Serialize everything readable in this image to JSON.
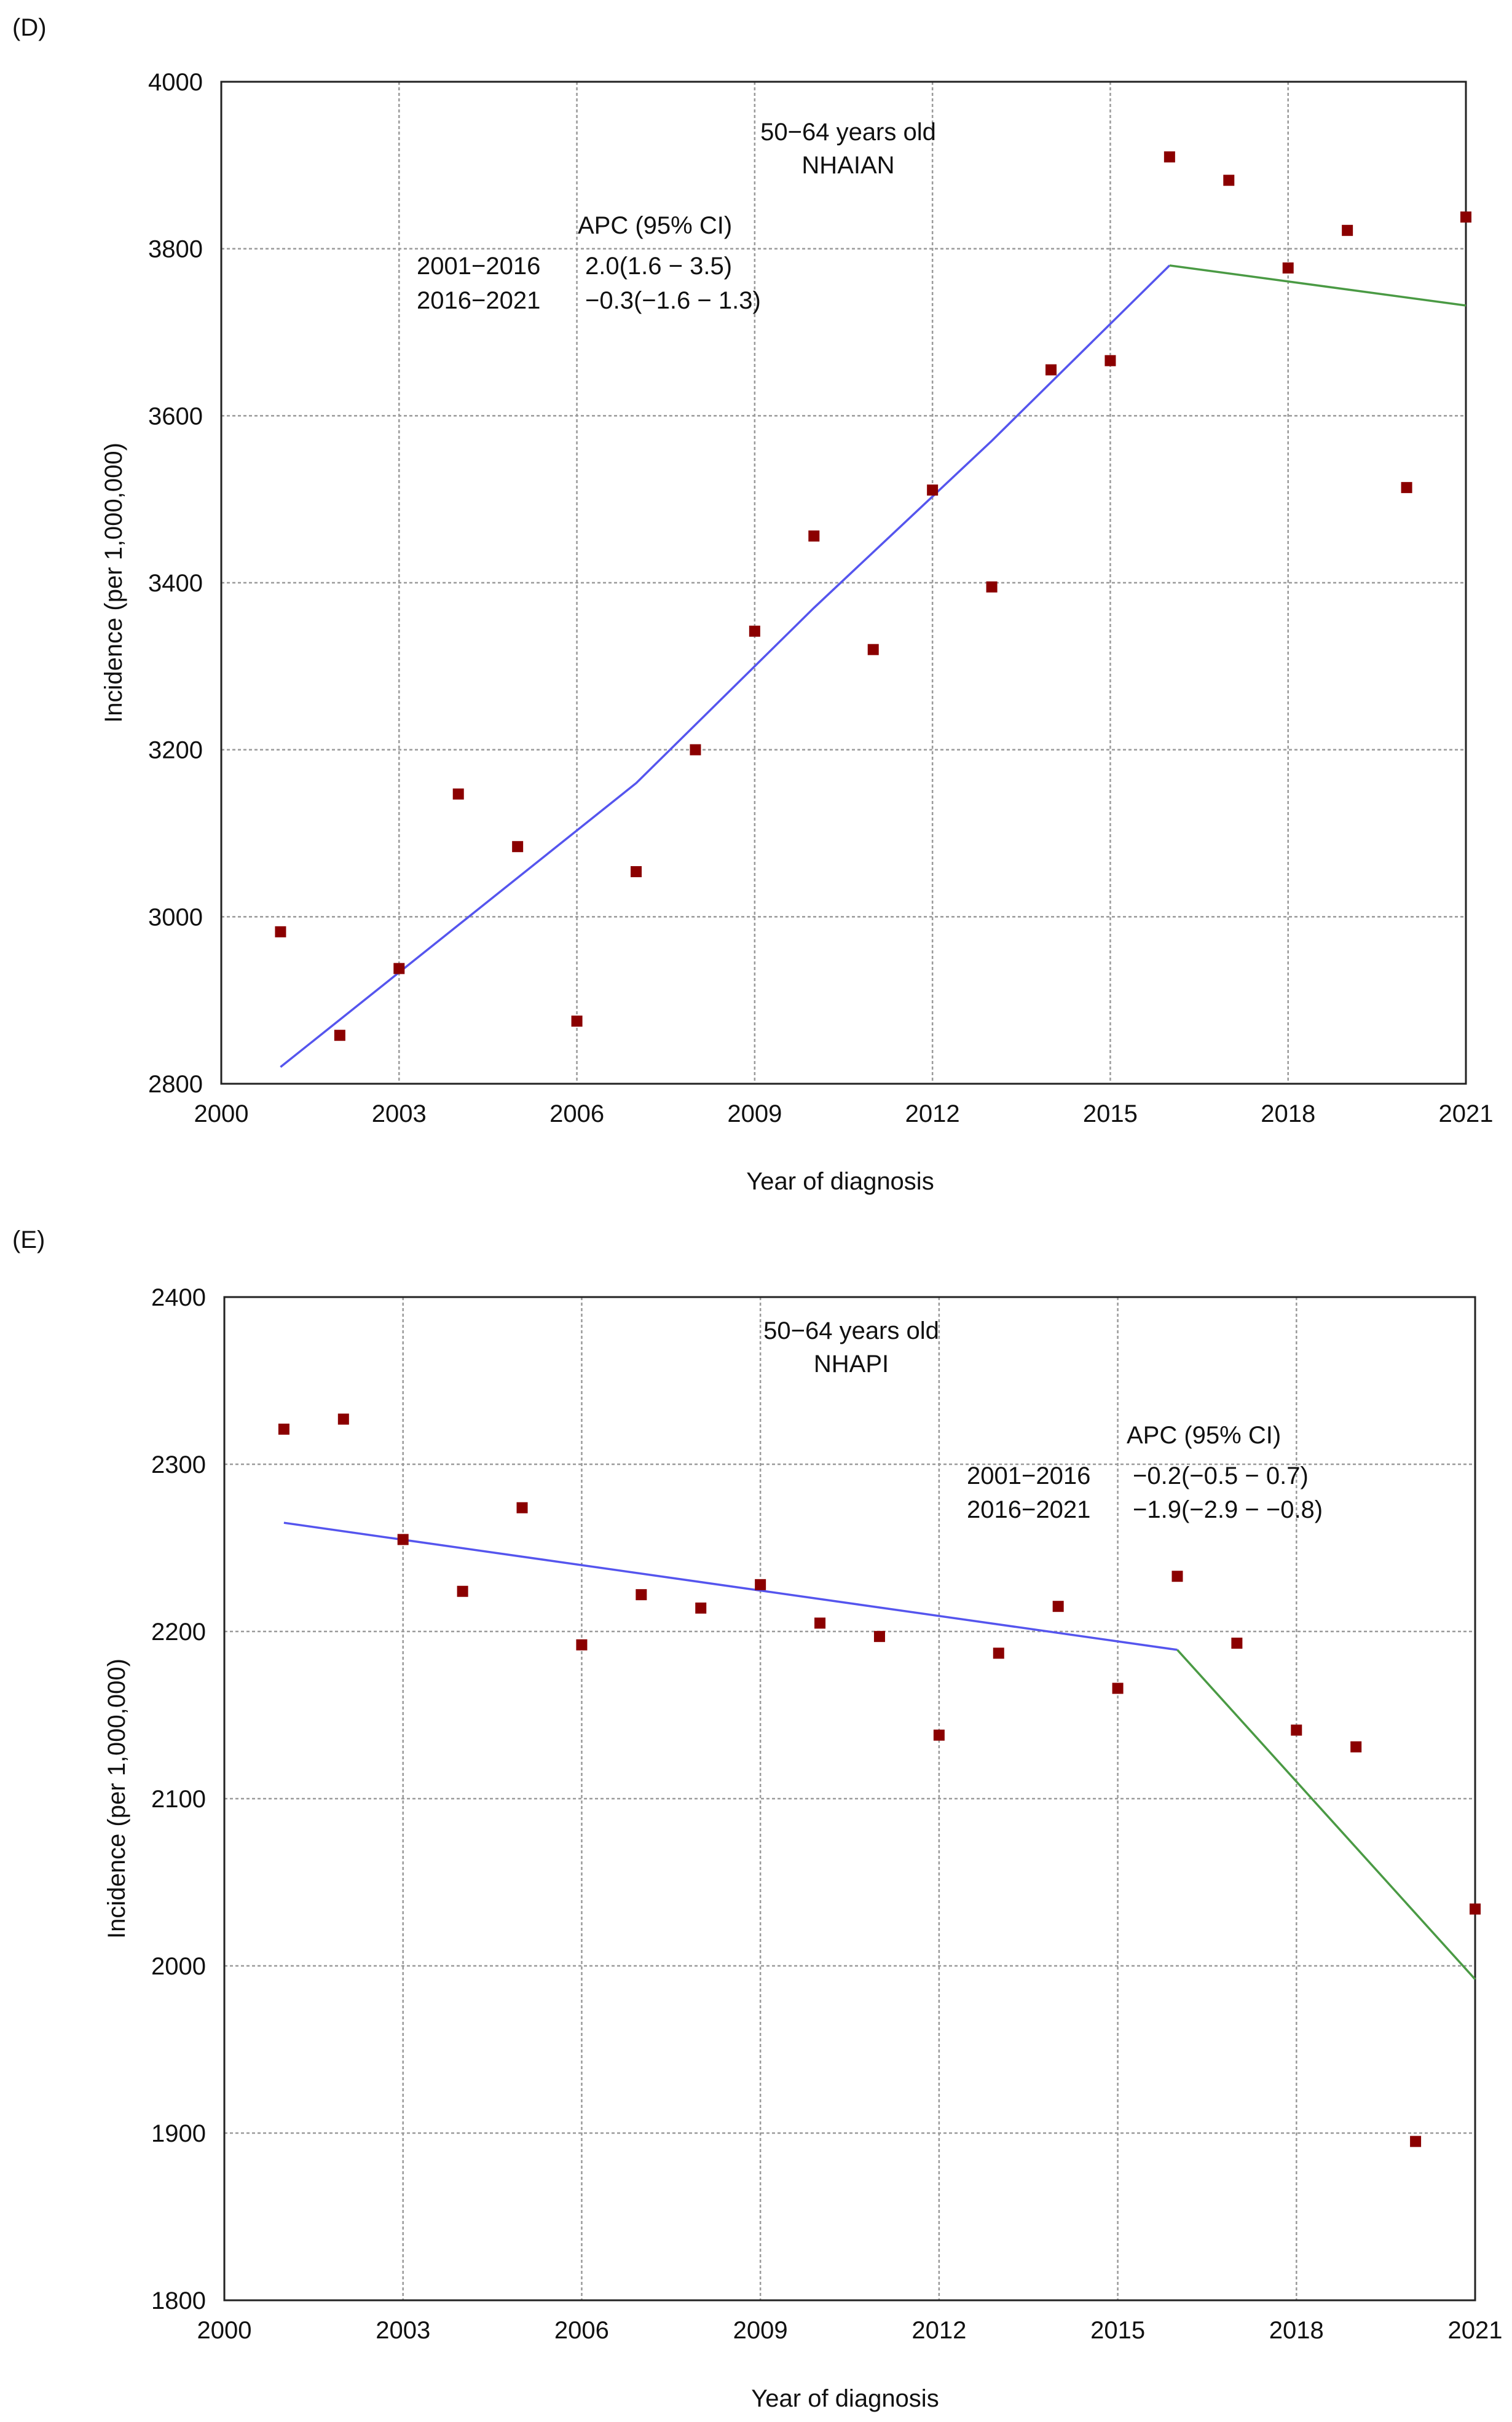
{
  "chart_data": [
    {
      "type": "scatter",
      "panel_label": "(D)",
      "xlabel": "Year of diagnosis",
      "ylabel": "Incidence (per 1,000,000)",
      "xlim": [
        2000,
        2021
      ],
      "ylim": [
        2800,
        4000
      ],
      "xticks": [
        2000,
        2003,
        2006,
        2009,
        2012,
        2015,
        2018,
        2021
      ],
      "yticks": [
        2800,
        3000,
        3200,
        3400,
        3600,
        3800,
        4000
      ],
      "grid": true,
      "annotation_title": [
        "50−64 years old",
        "NHAIAN"
      ],
      "apc_header": "APC (95% CI)",
      "apc_rows": [
        {
          "period": "2001−2016",
          "value": "2.0(1.6 − 3.5)"
        },
        {
          "period": "2016−2021",
          "value": "−0.3(−1.6 − 1.3)"
        }
      ],
      "x": [
        2001,
        2002,
        2003,
        2004,
        2005,
        2006,
        2007,
        2008,
        2009,
        2010,
        2011,
        2012,
        2013,
        2014,
        2015,
        2016,
        2017,
        2018,
        2019,
        2020,
        2021
      ],
      "y": [
        2982,
        2858,
        2938,
        3147,
        3084,
        2875,
        3054,
        3200,
        3342,
        3456,
        3320,
        3511,
        3395,
        3655,
        3666,
        3910,
        3882,
        3777,
        3822,
        3514,
        3838
      ],
      "point_color": "#8b0000",
      "fit_segments": [
        {
          "x": [
            2001,
            2004,
            2007,
            2010,
            2013,
            2016
          ],
          "y": [
            2820,
            2990,
            3160,
            3370,
            3570,
            3780
          ],
          "color": "#5555ee"
        },
        {
          "x": [
            2016,
            2021
          ],
          "y": [
            3780,
            3732
          ],
          "color": "#4a9a44"
        }
      ]
    },
    {
      "type": "scatter",
      "panel_label": "(E)",
      "xlabel": "Year of diagnosis",
      "ylabel": "Incidence (per 1,000,000)",
      "xlim": [
        2000,
        2021
      ],
      "ylim": [
        1800,
        2400
      ],
      "xticks": [
        2000,
        2003,
        2006,
        2009,
        2012,
        2015,
        2018,
        2021
      ],
      "yticks": [
        1800,
        1900,
        2000,
        2100,
        2200,
        2300,
        2400
      ],
      "grid": true,
      "annotation_title": [
        "50−64 years old",
        "NHAPI"
      ],
      "apc_header": "APC (95% CI)",
      "apc_rows": [
        {
          "period": "2001−2016",
          "value": "−0.2(−0.5 − 0.7)"
        },
        {
          "period": "2016−2021",
          "value": "−1.9(−2.9 − −0.8)"
        }
      ],
      "x": [
        2001,
        2002,
        2003,
        2004,
        2005,
        2006,
        2007,
        2008,
        2009,
        2010,
        2011,
        2012,
        2013,
        2014,
        2015,
        2016,
        2017,
        2018,
        2019,
        2020,
        2021
      ],
      "y": [
        2321,
        2327,
        2255,
        2224,
        2274,
        2192,
        2222,
        2214,
        2228,
        2205,
        2197,
        2138,
        2187,
        2215,
        2166,
        2233,
        2193,
        2141,
        2131,
        1895,
        2034
      ],
      "point_color": "#8b0000",
      "fit_segments": [
        {
          "x": [
            2001,
            2016
          ],
          "y": [
            2265,
            2189
          ],
          "color": "#5555ee"
        },
        {
          "x": [
            2016,
            2021
          ],
          "y": [
            2189,
            1992
          ],
          "color": "#4a9a44"
        }
      ]
    }
  ]
}
